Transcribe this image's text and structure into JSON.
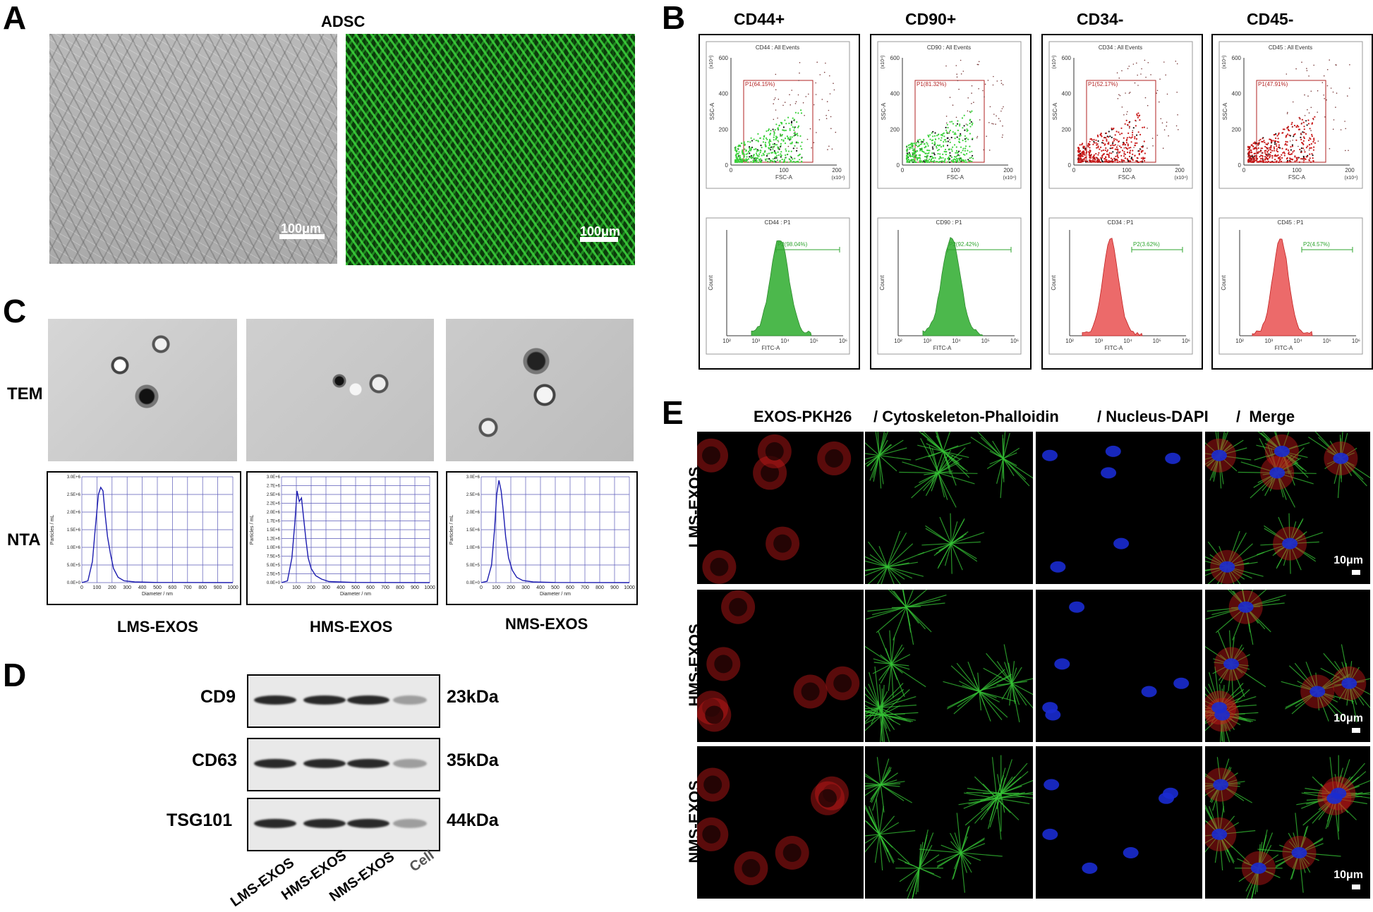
{
  "panel_letters": {
    "a": "A",
    "b": "B",
    "c": "C",
    "d": "D",
    "e": "E"
  },
  "panel_a": {
    "title": "ADSC",
    "scale_left": "100μm",
    "scale_right": "100μm"
  },
  "panel_b": {
    "markers": [
      "CD44+",
      "CD90+",
      "CD34-",
      "CD45-"
    ],
    "columns": [
      {
        "scatter_title": "CD44 : All Events",
        "gate": "P1(64.15%)",
        "hist_title": "CD44 : P1",
        "hist_gate": "P2(98.04%)"
      },
      {
        "scatter_title": "CD90 : All Events",
        "gate": "P1(81.32%)",
        "hist_title": "CD90 : P1",
        "hist_gate": "P2(92.42%)"
      },
      {
        "scatter_title": "CD34 : All Events",
        "gate": "P1(52.17%)",
        "hist_title": "CD34 : P1",
        "hist_gate": "P2(3.62%)"
      },
      {
        "scatter_title": "CD45 : All Events",
        "gate": "P1(47.91%)",
        "hist_title": "CD45 : P1",
        "hist_gate": "P2(4.57%)"
      }
    ],
    "scatter_axes": {
      "x": "FSC-A",
      "y": "SSC-A",
      "xunit": "(x10⁴)",
      "yunit": "(x10⁴)",
      "xticks": [
        "0",
        "100",
        "200"
      ],
      "yticks": [
        "0",
        "200",
        "400",
        "600"
      ]
    },
    "hist_axes": {
      "x": "FITC-A",
      "y": "Count",
      "xticks": [
        "10²",
        "10³",
        "10⁴",
        "10⁵",
        "10⁶"
      ]
    }
  },
  "panel_c": {
    "row_tem": "TEM",
    "row_nta": "NTA",
    "groups": [
      "LMS-EXOS",
      "HMS-EXOS",
      "NMS-EXOS"
    ],
    "nta_ylabel": "Particles / mL",
    "nta_xlabel": "Diameter / nm",
    "nta_yticks": [
      "0.0E+0",
      "5.0E+5",
      "1.0E+6",
      "1.5E+6",
      "2.0E+6",
      "2.5E+6",
      "3.0E+6"
    ],
    "nta_yticks_b": [
      "0.0E+0",
      "2.5E+5",
      "5.0E+5",
      "7.5E+5",
      "1.0E+6",
      "1.2E+6",
      "1.5E+6",
      "1.7E+6",
      "2.0E+6",
      "2.2E+6",
      "2.5E+6",
      "2.7E+6",
      "3.0E+6"
    ],
    "nta_xticks": [
      "0",
      "100",
      "200",
      "300",
      "400",
      "500",
      "600",
      "700",
      "800",
      "900",
      "1000"
    ]
  },
  "chart_data": [
    {
      "type": "line",
      "title": "",
      "xlabel": "Diameter / nm",
      "ylabel": "Particles / mL",
      "xlim": [
        0,
        1000
      ],
      "ylim": [
        0,
        3000000
      ],
      "series": [
        {
          "name": "LMS-EXOS",
          "x": [
            0,
            40,
            70,
            90,
            110,
            125,
            140,
            155,
            170,
            190,
            210,
            240,
            280,
            350,
            500,
            1000
          ],
          "y": [
            0,
            50000,
            600000,
            1600000,
            2500000,
            2700000,
            2600000,
            1900000,
            1300000,
            800000,
            400000,
            150000,
            50000,
            20000,
            5000,
            0
          ]
        }
      ]
    },
    {
      "type": "line",
      "title": "",
      "xlabel": "Diameter / nm",
      "ylabel": "Particles / mL",
      "xlim": [
        0,
        1000
      ],
      "ylim": [
        0,
        3000000
      ],
      "series": [
        {
          "name": "HMS-EXOS",
          "x": [
            0,
            40,
            70,
            90,
            105,
            120,
            135,
            150,
            165,
            180,
            200,
            230,
            270,
            320,
            500,
            1000
          ],
          "y": [
            0,
            50000,
            700000,
            1700000,
            2600000,
            2300000,
            2400000,
            1800000,
            1200000,
            700000,
            400000,
            200000,
            100000,
            30000,
            5000,
            0
          ]
        }
      ]
    },
    {
      "type": "line",
      "title": "",
      "xlabel": "Diameter / nm",
      "ylabel": "Particles / mL",
      "xlim": [
        0,
        1000
      ],
      "ylim": [
        0,
        3000000
      ],
      "series": [
        {
          "name": "NMS-EXOS",
          "x": [
            0,
            40,
            70,
            90,
            105,
            120,
            135,
            150,
            165,
            185,
            210,
            240,
            280,
            350,
            500,
            1000
          ],
          "y": [
            0,
            40000,
            500000,
            1500000,
            2500000,
            2900000,
            2600000,
            2000000,
            1300000,
            700000,
            350000,
            150000,
            60000,
            20000,
            5000,
            0
          ]
        }
      ]
    }
  ],
  "panel_d": {
    "proteins": [
      {
        "name": "CD9",
        "kda": "23kDa"
      },
      {
        "name": "CD63",
        "kda": "35kDa"
      },
      {
        "name": "TSG101",
        "kda": "44kDa"
      }
    ],
    "lanes": [
      "LMS-EXOS",
      "HMS-EXOS",
      "NMS-EXOS",
      "Cell"
    ]
  },
  "panel_e": {
    "header": [
      "EXOS-PKH26",
      "/ Cytoskeleton-Phalloidin",
      "/ Nucleus-DAPI",
      "/  Merge"
    ],
    "rows": [
      "LMS-EXOS",
      "HMS-EXOS",
      "NMS-EXOS"
    ],
    "scale": "10μm"
  },
  "colors": {
    "gfp": "#2fa52f",
    "pkh": "#c81818",
    "dapi": "#1a2bd0",
    "gate": "#b22222",
    "gfp_hist": "#4cb84c",
    "neg_hist": "#ec6a6a",
    "nta_line": "#1c1cb0"
  }
}
